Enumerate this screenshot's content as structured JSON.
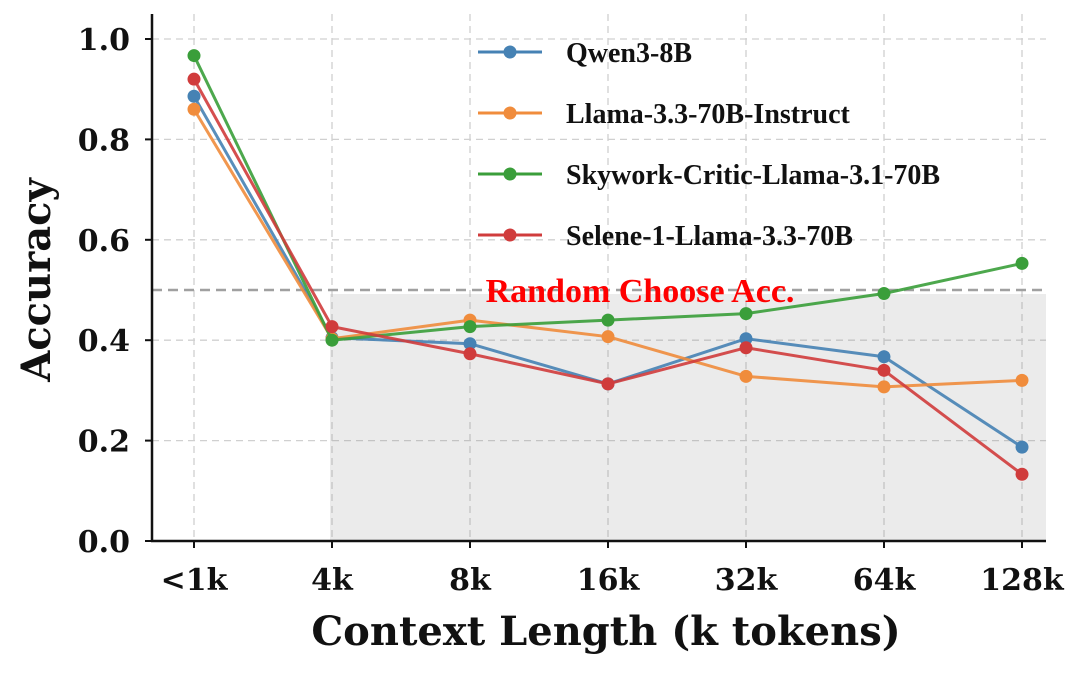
{
  "chart_data": {
    "type": "line",
    "title": "",
    "xlabel": "Context Length (k tokens)",
    "ylabel": "Accuracy",
    "categories": [
      "<1k",
      "4k",
      "8k",
      "16k",
      "32k",
      "64k",
      "128k"
    ],
    "ylim": [
      0,
      1.05
    ],
    "yticks": [
      "0.0",
      "0.2",
      "0.4",
      "0.6",
      "0.8",
      "1.0"
    ],
    "grid": true,
    "legend_position": "top-right",
    "series": [
      {
        "name": "Qwen3-8B",
        "color": "#4682b4",
        "values": [
          0.886,
          0.405,
          0.393,
          0.313,
          0.403,
          0.367,
          0.187
        ]
      },
      {
        "name": "Llama-3.3-70B-Instruct",
        "color": "#f08c3c",
        "values": [
          0.86,
          0.403,
          0.44,
          0.407,
          0.328,
          0.307,
          0.32
        ]
      },
      {
        "name": "Skywork-Critic-Llama-3.1-70B",
        "color": "#3a9e3a",
        "values": [
          0.967,
          0.4,
          0.427,
          0.44,
          0.453,
          0.493,
          0.553
        ]
      },
      {
        "name": "Selene-1-Llama-3.3-70B",
        "color": "#d03c3c",
        "values": [
          0.92,
          0.427,
          0.373,
          0.313,
          0.385,
          0.34,
          0.133
        ]
      }
    ],
    "reference_line": {
      "value": 0.5,
      "label": "Random Choose Acc.",
      "color": "#ff0000"
    },
    "shaded_region": {
      "x_from": "4k",
      "x_to": "128k",
      "y_from": 0,
      "y_to": 0.5
    }
  }
}
